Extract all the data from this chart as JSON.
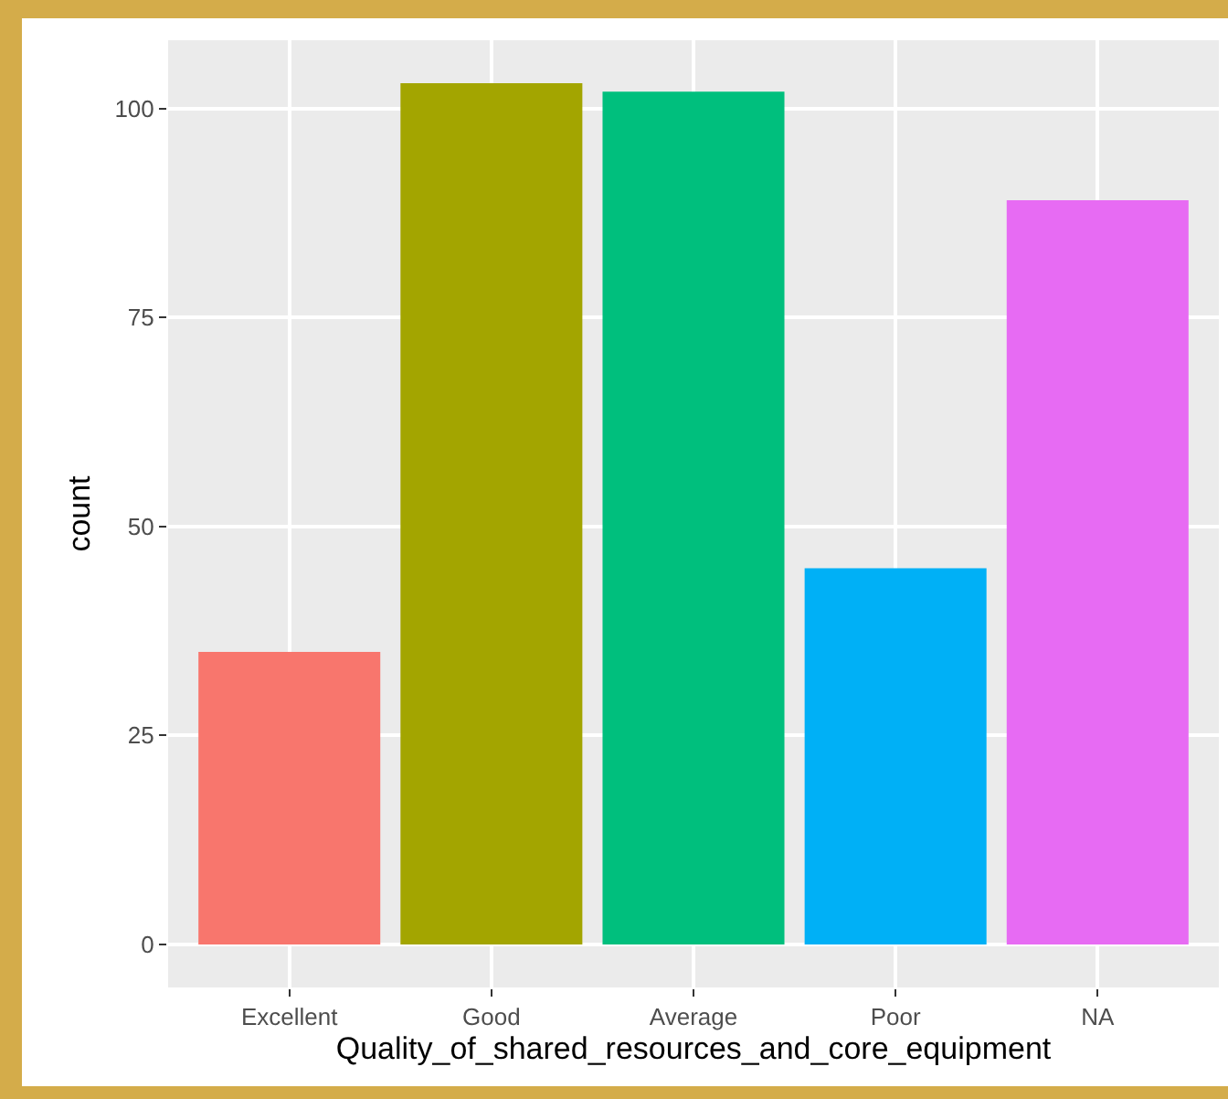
{
  "chart_data": {
    "type": "bar",
    "xlabel": "Quality_of_shared_resources_and_core_equipment",
    "ylabel": "count",
    "categories": [
      "Excellent",
      "Good",
      "Average",
      "Poor",
      "NA"
    ],
    "values": [
      35,
      103,
      102,
      45,
      89
    ],
    "colors": [
      "#f8766d",
      "#a3a500",
      "#00bf7d",
      "#00b0f6",
      "#e76bf3"
    ],
    "ylim": [
      -5.15,
      108.15
    ],
    "yticks": [
      0,
      25,
      50,
      75,
      100
    ],
    "grid": true,
    "legend": false
  }
}
